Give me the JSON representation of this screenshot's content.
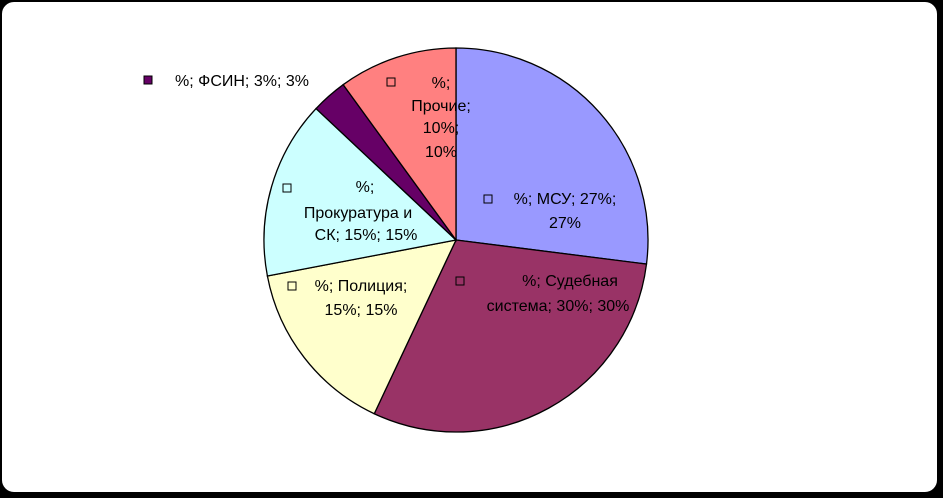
{
  "chart_data": {
    "type": "pie",
    "start_angle_deg": 0,
    "direction": "clockwise",
    "slices": [
      {
        "category": "МСУ",
        "value": 27,
        "percent": "27%",
        "label_lines": [
          "%; МСУ; 27%;",
          "27%"
        ],
        "color": "#9999ff"
      },
      {
        "category": "Судебная система",
        "value": 30,
        "percent": "30%",
        "label_lines": [
          "%; Судебная",
          "система; 30%; 30%"
        ],
        "color": "#993366"
      },
      {
        "category": "Полиция",
        "value": 15,
        "percent": "15%",
        "label_lines": [
          "%; Полиция;",
          "15%; 15%"
        ],
        "color": "#ffffcc"
      },
      {
        "category": "Прокуратура и СК",
        "value": 15,
        "percent": "15%",
        "label_lines": [
          "%;",
          "Прокуратура и",
          "СК; 15%; 15%"
        ],
        "color": "#ccffff"
      },
      {
        "category": "ФСИН",
        "value": 3,
        "percent": "3%",
        "label_lines": [
          "%; ФСИН; 3%; 3%"
        ],
        "color": "#660066"
      },
      {
        "category": "Прочие",
        "value": 10,
        "percent": "10%",
        "label_lines": [
          "%;",
          "Прочие;",
          "10%;",
          "10%"
        ],
        "color": "#ff8080"
      }
    ],
    "legend": "none",
    "title": ""
  }
}
